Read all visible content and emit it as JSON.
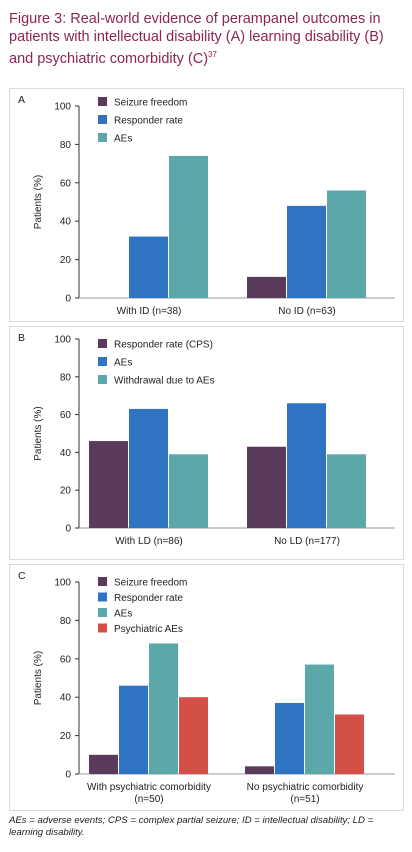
{
  "figure": {
    "title": "Figure 3: Real-world evidence of perampanel outcomes in patients with intellectual disability (A) learning disability (B) and psychiatric comorbidity (C)",
    "title_ref": "37",
    "footnote": "AEs = adverse events; CPS = complex partial seizure; ID = intellectual disability; LD = learning disability."
  },
  "colors": {
    "title": "#8c2455",
    "seizure_freedom": "#5a3a5b",
    "responder": "#2e74c3",
    "aes": "#5ba7aa",
    "psychiatric_aes": "#d25048"
  },
  "chart_data": [
    {
      "type": "bar",
      "panel_label": "A",
      "ylabel": "Patients (%)",
      "ylim": [
        0,
        100
      ],
      "yticks": [
        0,
        20,
        40,
        60,
        80,
        100
      ],
      "categories": [
        [
          "With ID (n=38)"
        ],
        [
          "No  ID (n=63)"
        ]
      ],
      "legend_position": "top-left",
      "series": [
        {
          "name": "Seizure freedom",
          "color": "#5a3a5b",
          "values": [
            0,
            11
          ]
        },
        {
          "name": "Responder rate",
          "color": "#2e74c3",
          "values": [
            32,
            48
          ]
        },
        {
          "name": "AEs",
          "color": "#5ba7aa",
          "values": [
            74,
            56
          ]
        }
      ]
    },
    {
      "type": "bar",
      "panel_label": "B",
      "ylabel": "Patients (%)",
      "ylim": [
        0,
        100
      ],
      "yticks": [
        0,
        20,
        40,
        60,
        80,
        100
      ],
      "categories": [
        [
          "With LD (n=86)"
        ],
        [
          "No  LD (n=177)"
        ]
      ],
      "legend_position": "top-center",
      "series": [
        {
          "name": "Responder rate (CPS)",
          "color": "#5a3a5b",
          "values": [
            46,
            43
          ]
        },
        {
          "name": "AEs",
          "color": "#2e74c3",
          "values": [
            63,
            66
          ]
        },
        {
          "name": "Withdrawal due to AEs",
          "color": "#5ba7aa",
          "values": [
            39,
            39
          ]
        }
      ]
    },
    {
      "type": "bar",
      "panel_label": "C",
      "ylabel": "Patients (%)",
      "ylim": [
        0,
        100
      ],
      "yticks": [
        0,
        20,
        40,
        60,
        80,
        100
      ],
      "categories": [
        [
          "With psychiatric comorbidity",
          "(n=50)"
        ],
        [
          "No psychiatric comorbidity",
          "(n=51)"
        ]
      ],
      "legend_position": "top-left",
      "series": [
        {
          "name": "Seizure freedom",
          "color": "#5a3a5b",
          "values": [
            10,
            4
          ]
        },
        {
          "name": "Responder rate",
          "color": "#2e74c3",
          "values": [
            46,
            37
          ]
        },
        {
          "name": "AEs",
          "color": "#5ba7aa",
          "values": [
            68,
            57
          ]
        },
        {
          "name": "Psychiatric AEs",
          "color": "#d25048",
          "values": [
            40,
            31
          ]
        }
      ]
    }
  ]
}
